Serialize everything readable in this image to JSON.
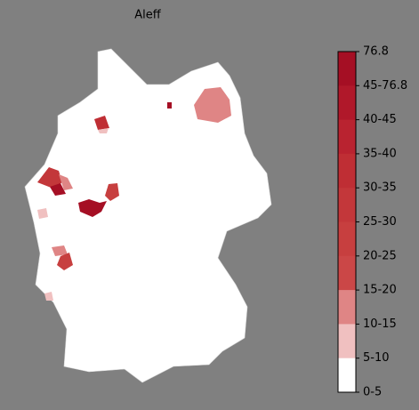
{
  "title": "Aleff",
  "colorbar": {
    "labels": [
      "76.8",
      "45-76.8",
      "40-45",
      "35-40",
      "30-35",
      "25-30",
      "20-25",
      "15-20",
      "10-15",
      "5-10",
      "0-5"
    ],
    "colors": [
      "#a50f24",
      "#b0182a",
      "#b92330",
      "#bf2e34",
      "#c3373a",
      "#c73f3f",
      "#cb4747",
      "#df8585",
      "#f0c0c0",
      "#ffffff"
    ]
  }
}
